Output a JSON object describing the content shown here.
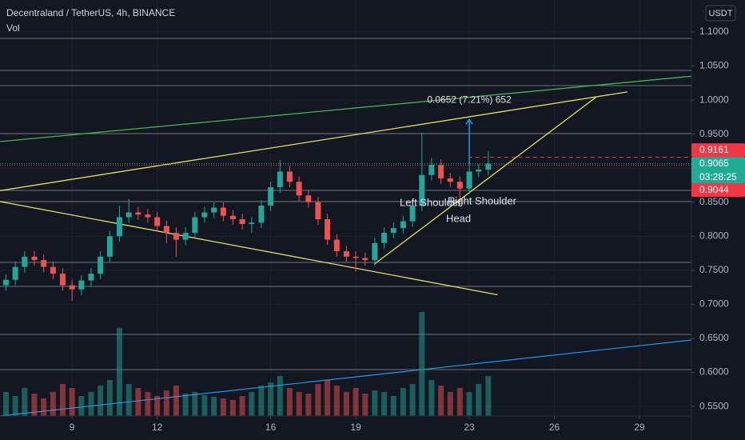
{
  "header": {
    "title": "Decentraland / TetherUS, 4h, BINANCE",
    "indicator": "Vol",
    "currency": "USDT"
  },
  "chart_data": {
    "type": "candlestick",
    "x": [
      6.67,
      7,
      7.33,
      7.67,
      8,
      8.33,
      8.67,
      9,
      9.33,
      9.67,
      10,
      10.33,
      10.67,
      11,
      11.33,
      11.67,
      12,
      12.33,
      12.67,
      13,
      13.33,
      13.67,
      14,
      14.33,
      14.67,
      15,
      15.33,
      15.67,
      16,
      16.33,
      16.67,
      17,
      17.33,
      17.67,
      18,
      18.33,
      18.67,
      19,
      19.33,
      19.67,
      20,
      20.33,
      20.67,
      21,
      21.33,
      21.67,
      22,
      22.33,
      22.67,
      23,
      23.33,
      23.67
    ],
    "open": [
      0.728,
      0.736,
      0.755,
      0.77,
      0.765,
      0.755,
      0.745,
      0.728,
      0.722,
      0.735,
      0.745,
      0.77,
      0.8,
      0.828,
      0.835,
      0.832,
      0.828,
      0.815,
      0.805,
      0.795,
      0.805,
      0.828,
      0.835,
      0.842,
      0.83,
      0.825,
      0.818,
      0.82,
      0.845,
      0.872,
      0.895,
      0.88,
      0.86,
      0.85,
      0.825,
      0.795,
      0.778,
      0.77,
      0.768,
      0.765,
      0.79,
      0.805,
      0.812,
      0.822,
      0.845,
      0.89,
      0.905,
      0.885,
      0.88,
      0.87,
      0.895,
      0.898
    ],
    "high": [
      0.744,
      0.763,
      0.778,
      0.778,
      0.773,
      0.763,
      0.753,
      0.736,
      0.743,
      0.753,
      0.778,
      0.808,
      0.845,
      0.855,
      0.843,
      0.84,
      0.836,
      0.823,
      0.813,
      0.813,
      0.836,
      0.843,
      0.85,
      0.85,
      0.838,
      0.833,
      0.828,
      0.853,
      0.88,
      0.912,
      0.903,
      0.888,
      0.868,
      0.858,
      0.833,
      0.803,
      0.786,
      0.778,
      0.776,
      0.798,
      0.813,
      0.82,
      0.83,
      0.853,
      0.952,
      0.915,
      0.913,
      0.893,
      0.888,
      0.915,
      0.906,
      0.925
    ],
    "low": [
      0.72,
      0.728,
      0.747,
      0.757,
      0.747,
      0.737,
      0.72,
      0.705,
      0.714,
      0.727,
      0.737,
      0.762,
      0.792,
      0.82,
      0.824,
      0.82,
      0.807,
      0.79,
      0.77,
      0.787,
      0.797,
      0.82,
      0.827,
      0.822,
      0.817,
      0.81,
      0.805,
      0.812,
      0.837,
      0.864,
      0.872,
      0.852,
      0.842,
      0.817,
      0.787,
      0.77,
      0.762,
      0.748,
      0.757,
      0.757,
      0.782,
      0.797,
      0.804,
      0.814,
      0.837,
      0.882,
      0.877,
      0.872,
      0.855,
      0.862,
      0.887,
      0.89
    ],
    "close": [
      0.736,
      0.755,
      0.77,
      0.765,
      0.755,
      0.745,
      0.728,
      0.722,
      0.735,
      0.745,
      0.77,
      0.8,
      0.828,
      0.835,
      0.832,
      0.828,
      0.815,
      0.805,
      0.795,
      0.805,
      0.828,
      0.835,
      0.842,
      0.83,
      0.825,
      0.818,
      0.82,
      0.845,
      0.872,
      0.895,
      0.88,
      0.86,
      0.85,
      0.825,
      0.795,
      0.778,
      0.77,
      0.768,
      0.765,
      0.79,
      0.805,
      0.812,
      0.822,
      0.845,
      0.89,
      0.905,
      0.885,
      0.88,
      0.87,
      0.895,
      0.898,
      0.9065
    ],
    "volume": [
      30,
      25,
      35,
      28,
      22,
      30,
      40,
      35,
      25,
      30,
      38,
      45,
      110,
      40,
      35,
      30,
      25,
      32,
      38,
      28,
      30,
      26,
      24,
      22,
      20,
      25,
      30,
      38,
      42,
      50,
      35,
      30,
      28,
      40,
      45,
      38,
      30,
      35,
      28,
      32,
      30,
      25,
      35,
      40,
      130,
      45,
      38,
      30,
      35,
      30,
      40,
      50
    ],
    "up_color": "#26a69a",
    "down_color": "#ef5350",
    "xlim": [
      6.46,
      30.83
    ],
    "xticks": [
      9,
      12,
      16,
      19,
      23,
      26,
      29
    ],
    "ylim": [
      0.536,
      1.147
    ],
    "yticks": [
      {
        "value": 1.1,
        "label": "1.1000"
      },
      {
        "value": 1.05,
        "label": "1.0500"
      },
      {
        "value": 1.0,
        "label": "1.0000"
      },
      {
        "value": 0.95,
        "label": "0.9500"
      },
      {
        "value": 0.9,
        "label": "0.9000"
      },
      {
        "value": 0.85,
        "label": "0.8500"
      },
      {
        "value": 0.8,
        "label": "0.8000"
      },
      {
        "value": 0.75,
        "label": "0.7500"
      },
      {
        "value": 0.7,
        "label": "0.7000"
      },
      {
        "value": 0.65,
        "label": "0.6500"
      },
      {
        "value": 0.6,
        "label": "0.6000"
      },
      {
        "value": 0.55,
        "label": "0.5500"
      }
    ],
    "levels": [
      1.0906,
      1.0436,
      1.0213,
      0.9508,
      0.8673,
      0.851,
      0.7616,
      0.7263,
      0.6558,
      0.6041
    ],
    "level_color": "#6f7380",
    "trend_lines": [
      {
        "color": "#e3dc6c",
        "points": [
          [
            6.46,
            0.851
          ],
          [
            24.0,
            0.714
          ]
        ]
      },
      {
        "color": "#e3dc6c",
        "points": [
          [
            6.46,
            0.867
          ],
          [
            28.57,
            1.012
          ]
        ]
      },
      {
        "color": "#e3dc6c",
        "points": [
          [
            19.65,
            0.759
          ],
          [
            27.46,
            1.004
          ]
        ]
      },
      {
        "color": "#4caf50",
        "points": [
          [
            6.46,
            0.939
          ],
          [
            30.83,
            1.035
          ]
        ]
      }
    ],
    "measure": {
      "x": 23.0,
      "from": 0.9065,
      "to": 0.9717,
      "label": "0.0652 (7.21%) 652",
      "color": "#2196f3"
    },
    "annotations": [
      "Left Shoulder",
      "Right Shoulder",
      "Head"
    ],
    "price_labels": [
      {
        "value": 0.9161,
        "label": "0.9161",
        "color": "#f23645"
      },
      {
        "value": 0.9065,
        "label": "0.9065",
        "color": "#22ab94"
      },
      {
        "value": 0.9044,
        "label": "0.9044",
        "color": "#f23645"
      }
    ],
    "countdown": "03:28:25"
  }
}
